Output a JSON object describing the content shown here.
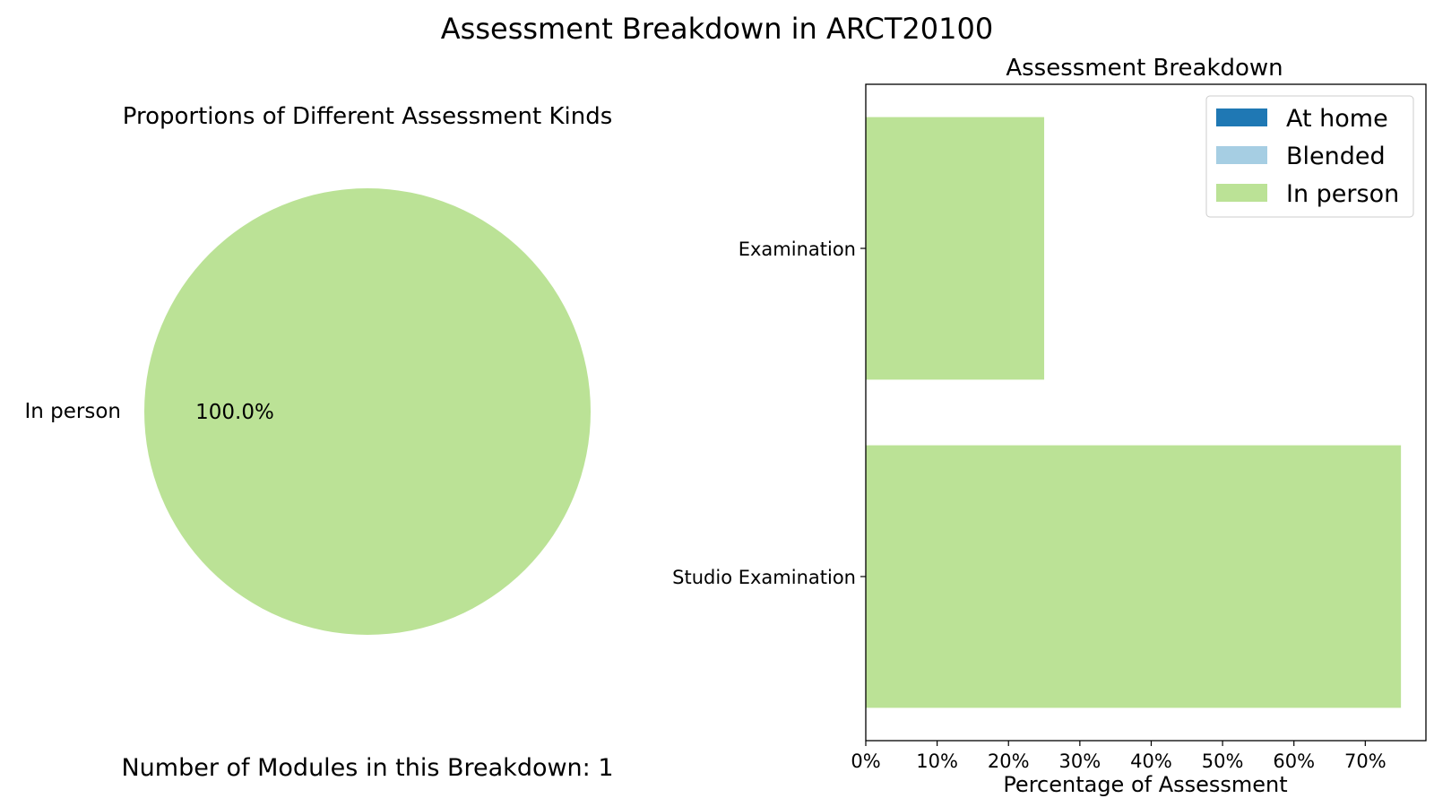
{
  "figure": {
    "suptitle": "Assessment Breakdown in ARCT20100",
    "footer": "Number of Modules in this Breakdown: 1"
  },
  "colors": {
    "at_home": "#1f78b4",
    "blended": "#a6cee3",
    "in_person": "#bbe296"
  },
  "chart_data": [
    {
      "type": "pie",
      "title": "Proportions of Different Assessment Kinds",
      "labels": [
        "In person"
      ],
      "values": [
        100.0
      ],
      "value_labels": [
        "100.0%"
      ],
      "colors": [
        "#bbe296"
      ]
    },
    {
      "type": "bar",
      "orientation": "horizontal",
      "stacked": true,
      "title": "Assessment Breakdown",
      "xlabel": "Percentage of Assessment",
      "ylabel": "",
      "categories": [
        "Examination",
        "Studio Examination"
      ],
      "series": [
        {
          "name": "At home",
          "color": "#1f78b4",
          "values": [
            0,
            0
          ]
        },
        {
          "name": "Blended",
          "color": "#a6cee3",
          "values": [
            0,
            0
          ]
        },
        {
          "name": "In person",
          "color": "#bbe296",
          "values": [
            25,
            75
          ]
        }
      ],
      "xlim": [
        0,
        78.5
      ],
      "xticks": [
        0,
        10,
        20,
        30,
        40,
        50,
        60,
        70
      ],
      "xtick_labels": [
        "0%",
        "10%",
        "20%",
        "30%",
        "40%",
        "50%",
        "60%",
        "70%"
      ],
      "legend": {
        "position": "upper right",
        "entries": [
          "At home",
          "Blended",
          "In person"
        ]
      },
      "grid": false
    }
  ]
}
